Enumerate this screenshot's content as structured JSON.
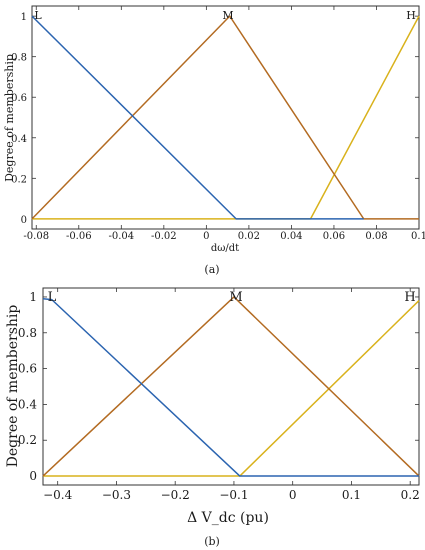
{
  "panels": [
    {
      "tag": "(a)",
      "xlabel": "dω/dt",
      "ylabel": "Degree of membership"
    },
    {
      "tag": "(b)",
      "xlabel": "Δ V_dc (pu)",
      "ylabel": "Degree of membership"
    }
  ],
  "colors": {
    "L": "#2b64b0",
    "M": "#b36b22",
    "H": "#d9b21c",
    "frame": "#333333"
  },
  "chart_data": [
    {
      "type": "line",
      "xlabel": "dω/dt",
      "ylabel": "Degree of membership",
      "xlim": [
        -0.082,
        0.1
      ],
      "ylim": [
        -0.05,
        1.05
      ],
      "x_ticks": [
        "-0.08",
        "-0.06",
        "-0.04",
        "-0.02",
        "0",
        "0.02",
        "0.04",
        "0.06",
        "0.08",
        "0.1"
      ],
      "x_tick_values": [
        -0.08,
        -0.06,
        -0.04,
        -0.02,
        0,
        0.02,
        0.04,
        0.06,
        0.08,
        0.1
      ],
      "y_ticks": [
        "0",
        "0.2",
        "0.4",
        "0.6",
        "0.8",
        "1"
      ],
      "y_tick_values": [
        0,
        0.2,
        0.4,
        0.6,
        0.8,
        1
      ],
      "series": [
        {
          "name": "L",
          "points": [
            [
              -0.082,
              1
            ],
            [
              0.014,
              0
            ],
            [
              0.074,
              0
            ]
          ]
        },
        {
          "name": "M",
          "points": [
            [
              -0.082,
              0
            ],
            [
              0.011,
              1
            ],
            [
              0.074,
              0
            ],
            [
              0.1,
              0
            ]
          ]
        },
        {
          "name": "H",
          "points": [
            [
              -0.082,
              0
            ],
            [
              0.049,
              0
            ],
            [
              0.1,
              1
            ]
          ]
        }
      ]
    },
    {
      "type": "line",
      "xlabel": "Δ V_dc (pu)",
      "ylabel": "Degree of membership",
      "xlim": [
        -0.425,
        0.215
      ],
      "ylim": [
        -0.05,
        1.05
      ],
      "x_ticks": [
        "−0.4",
        "−0.3",
        "−0.2",
        "−0.1",
        "0",
        "0.1",
        "0.2"
      ],
      "x_tick_values": [
        -0.4,
        -0.3,
        -0.2,
        -0.1,
        0,
        0.1,
        0.2
      ],
      "y_ticks": [
        "0",
        "0.2",
        "0.4",
        "0.6",
        "0.8",
        "1"
      ],
      "y_tick_values": [
        0,
        0.2,
        0.4,
        0.6,
        0.8,
        1
      ],
      "series": [
        {
          "name": "L",
          "points": [
            [
              -0.425,
              0.99
            ],
            [
              -0.41,
              0.985
            ],
            [
              -0.09,
              0
            ],
            [
              0.215,
              0
            ]
          ]
        },
        {
          "name": "M",
          "points": [
            [
              -0.425,
              0
            ],
            [
              -0.1,
              1
            ],
            [
              0.215,
              0
            ]
          ]
        },
        {
          "name": "H",
          "points": [
            [
              -0.425,
              0
            ],
            [
              -0.09,
              0
            ],
            [
              0.215,
              0.98
            ]
          ]
        }
      ]
    }
  ]
}
